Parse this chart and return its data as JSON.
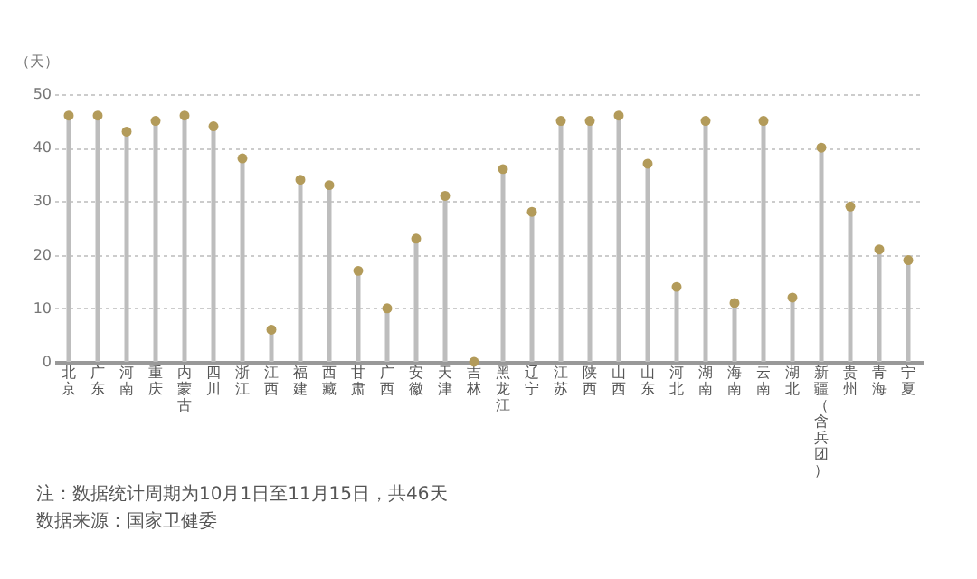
{
  "chart_data": {
    "type": "lollipop",
    "ylabel": "（天）",
    "categories": [
      "北京",
      "广东",
      "河南",
      "重庆",
      "内蒙古",
      "四川",
      "浙江",
      "江西",
      "福建",
      "西藏",
      "甘肃",
      "广西",
      "安徽",
      "天津",
      "吉林",
      "黑龙江",
      "辽宁",
      "江苏",
      "陕西",
      "山西",
      "山东",
      "河北",
      "湖南",
      "海南",
      "云南",
      "湖北",
      "新疆（含兵团）",
      "贵州",
      "青海",
      "宁夏"
    ],
    "series": [
      {
        "color": "#b39b5a",
        "values": [
          46,
          46,
          43,
          45,
          46,
          44,
          38,
          6,
          34,
          33,
          17,
          10,
          23,
          31,
          0,
          36,
          28,
          45,
          45,
          46,
          37,
          14,
          45,
          11,
          45,
          12,
          40,
          29,
          21,
          19
        ]
      }
    ],
    "ylim": [
      0,
      50
    ],
    "yticks": [
      0,
      10,
      20,
      30,
      40,
      50
    ],
    "grid": "y",
    "marker": "circle",
    "annotations": [
      "注：数据统计周期为10月1日至11月15日，共46天",
      "数据来源：国家卫健委"
    ]
  }
}
